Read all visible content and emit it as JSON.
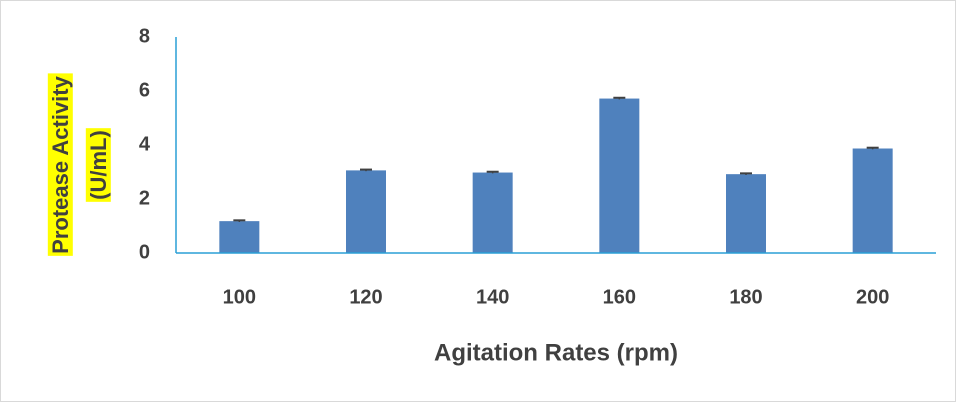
{
  "chart_data": {
    "type": "bar",
    "x_label": "Agitation Rates (rpm)",
    "y_label": [
      "Protease Activity",
      "(U/mL)"
    ],
    "categories": [
      "100",
      "120",
      "140",
      "160",
      "180",
      "200"
    ],
    "values": [
      1.18,
      3.06,
      2.98,
      5.72,
      2.92,
      3.87
    ],
    "errors": [
      0.03,
      0.03,
      0.03,
      0.03,
      0.03,
      0.03
    ],
    "color": "#4f81bd",
    "ylim": [
      0,
      8
    ],
    "yticks": [
      0,
      2,
      4,
      6,
      8
    ],
    "grid": false
  }
}
